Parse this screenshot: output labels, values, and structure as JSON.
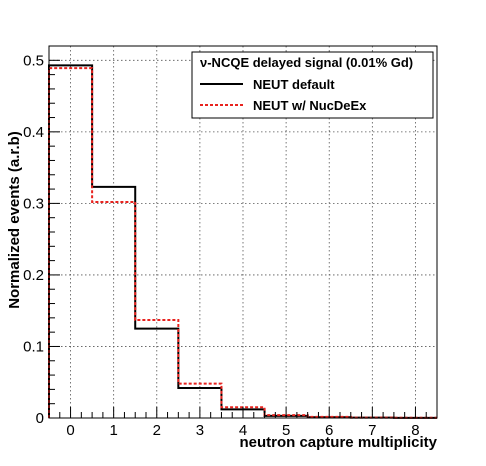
{
  "chart_data": {
    "type": "line",
    "subtype": "step-histogram",
    "xlabel": "neutron capture multiplicity",
    "ylabel": "Normalized events (a.r.b)",
    "xlim": [
      -0.5,
      8.5
    ],
    "ylim": [
      0,
      0.52
    ],
    "grid": true,
    "legend_position": "top-right",
    "legend_title": "ν-NCQE delayed signal (0.01% Gd)",
    "xticks": [
      0,
      1,
      2,
      3,
      4,
      5,
      6,
      7,
      8
    ],
    "xtick_labels": [
      "0",
      "1",
      "2",
      "3",
      "4",
      "5",
      "6",
      "7",
      "8"
    ],
    "yticks": [
      0,
      0.1,
      0.2,
      0.3,
      0.4,
      0.5
    ],
    "ytick_labels": [
      "0",
      "0.1",
      "0.2",
      "0.3",
      "0.4",
      "0.5"
    ],
    "x": [
      0,
      1,
      2,
      3,
      4,
      5,
      6,
      7,
      8
    ],
    "series": [
      {
        "name": "NEUT default",
        "color": "#000000",
        "style": "solid",
        "values": [
          0.493,
          0.323,
          0.125,
          0.042,
          0.012,
          0.003,
          0.001,
          0.0005,
          0.0002
        ]
      },
      {
        "name": "NEUT w/ NucDeEx",
        "color": "#e8231f",
        "style": "dashed",
        "values": [
          0.489,
          0.302,
          0.137,
          0.048,
          0.015,
          0.004,
          0.0015,
          0.0006,
          0.0003
        ]
      }
    ]
  }
}
